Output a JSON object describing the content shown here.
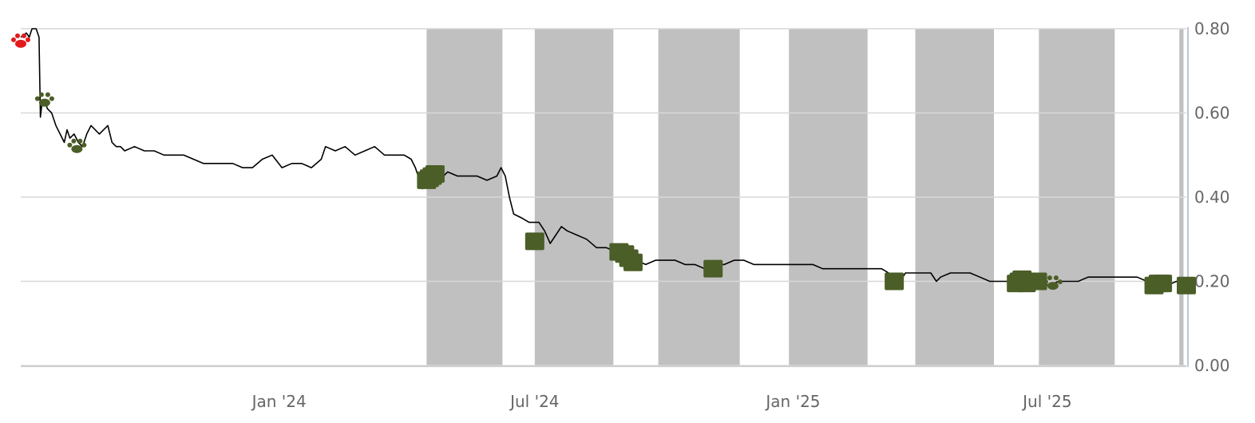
{
  "chart_data": {
    "type": "line",
    "title": "",
    "xlabel": "",
    "ylabel": "",
    "x_range": [
      "2023-07-01",
      "2025-10-08"
    ],
    "ylim": [
      0,
      0.8
    ],
    "y_ticks": [
      "0.00",
      "0.20",
      "0.40",
      "0.60",
      "0.80"
    ],
    "x_ticks": [
      {
        "date": "2024-01-01",
        "label": "Jan '24"
      },
      {
        "date": "2024-07-01",
        "label": "Jul '24"
      },
      {
        "date": "2025-01-01",
        "label": "Jan '25"
      },
      {
        "date": "2025-07-01",
        "label": "Jul '25"
      }
    ],
    "grid": "horizontal",
    "y_axis_position": "right",
    "colors": {
      "line": "#000000",
      "shade": "#c0c0c0",
      "marker": "#4b5e27",
      "marker_red": "#e31a1c",
      "grid": "#d8d8d8",
      "text": "#666666"
    },
    "shaded_periods": [
      [
        "2024-04-15",
        "2024-06-08"
      ],
      [
        "2024-07-01",
        "2024-08-26"
      ],
      [
        "2024-09-27",
        "2024-11-24"
      ],
      [
        "2024-12-29",
        "2025-02-23"
      ],
      [
        "2025-03-29",
        "2025-05-24"
      ],
      [
        "2025-06-25",
        "2025-08-18"
      ],
      [
        "2025-10-03",
        "2025-10-06"
      ]
    ],
    "series": [
      {
        "values": [
          [
            "2023-07-01",
            0.78
          ],
          [
            "2023-07-05",
            0.79
          ],
          [
            "2023-07-07",
            0.78
          ],
          [
            "2023-07-09",
            0.8
          ],
          [
            "2023-07-12",
            0.8
          ],
          [
            "2023-07-14",
            0.78
          ],
          [
            "2023-07-15",
            0.59
          ],
          [
            "2023-07-16",
            0.62
          ],
          [
            "2023-07-18",
            0.63
          ],
          [
            "2023-07-20",
            0.61
          ],
          [
            "2023-07-23",
            0.6
          ],
          [
            "2023-07-26",
            0.57
          ],
          [
            "2023-07-29",
            0.55
          ],
          [
            "2023-08-01",
            0.53
          ],
          [
            "2023-08-03",
            0.56
          ],
          [
            "2023-08-05",
            0.54
          ],
          [
            "2023-08-08",
            0.55
          ],
          [
            "2023-08-11",
            0.53
          ],
          [
            "2023-08-14",
            0.52
          ],
          [
            "2023-08-17",
            0.55
          ],
          [
            "2023-08-20",
            0.57
          ],
          [
            "2023-08-23",
            0.56
          ],
          [
            "2023-08-26",
            0.55
          ],
          [
            "2023-08-29",
            0.56
          ],
          [
            "2023-09-01",
            0.57
          ],
          [
            "2023-09-04",
            0.53
          ],
          [
            "2023-09-07",
            0.52
          ],
          [
            "2023-09-10",
            0.52
          ],
          [
            "2023-09-13",
            0.51
          ],
          [
            "2023-09-20",
            0.52
          ],
          [
            "2023-09-27",
            0.51
          ],
          [
            "2023-10-04",
            0.51
          ],
          [
            "2023-10-11",
            0.5
          ],
          [
            "2023-10-18",
            0.5
          ],
          [
            "2023-10-25",
            0.5
          ],
          [
            "2023-11-01",
            0.49
          ],
          [
            "2023-11-08",
            0.48
          ],
          [
            "2023-11-15",
            0.48
          ],
          [
            "2023-11-22",
            0.48
          ],
          [
            "2023-11-29",
            0.48
          ],
          [
            "2023-12-06",
            0.47
          ],
          [
            "2023-12-13",
            0.47
          ],
          [
            "2023-12-20",
            0.49
          ],
          [
            "2023-12-27",
            0.5
          ],
          [
            "2024-01-03",
            0.47
          ],
          [
            "2024-01-10",
            0.48
          ],
          [
            "2024-01-17",
            0.48
          ],
          [
            "2024-01-24",
            0.47
          ],
          [
            "2024-01-31",
            0.49
          ],
          [
            "2024-02-03",
            0.52
          ],
          [
            "2024-02-10",
            0.51
          ],
          [
            "2024-02-17",
            0.52
          ],
          [
            "2024-02-24",
            0.5
          ],
          [
            "2024-03-02",
            0.51
          ],
          [
            "2024-03-09",
            0.52
          ],
          [
            "2024-03-16",
            0.5
          ],
          [
            "2024-03-23",
            0.5
          ],
          [
            "2024-03-30",
            0.5
          ],
          [
            "2024-04-04",
            0.49
          ],
          [
            "2024-04-07",
            0.47
          ],
          [
            "2024-04-10",
            0.44
          ],
          [
            "2024-04-12",
            0.42
          ],
          [
            "2024-04-14",
            0.43
          ],
          [
            "2024-04-17",
            0.47
          ],
          [
            "2024-04-21",
            0.46
          ],
          [
            "2024-04-24",
            0.44
          ],
          [
            "2024-04-30",
            0.46
          ],
          [
            "2024-05-07",
            0.45
          ],
          [
            "2024-05-14",
            0.45
          ],
          [
            "2024-05-21",
            0.45
          ],
          [
            "2024-05-28",
            0.44
          ],
          [
            "2024-06-04",
            0.45
          ],
          [
            "2024-06-07",
            0.47
          ],
          [
            "2024-06-10",
            0.45
          ],
          [
            "2024-06-13",
            0.4
          ],
          [
            "2024-06-16",
            0.36
          ],
          [
            "2024-06-22",
            0.35
          ],
          [
            "2024-06-27",
            0.34
          ],
          [
            "2024-07-04",
            0.34
          ],
          [
            "2024-07-08",
            0.32
          ],
          [
            "2024-07-12",
            0.29
          ],
          [
            "2024-07-16",
            0.31
          ],
          [
            "2024-07-20",
            0.33
          ],
          [
            "2024-07-24",
            0.32
          ],
          [
            "2024-07-31",
            0.31
          ],
          [
            "2024-08-07",
            0.3
          ],
          [
            "2024-08-14",
            0.28
          ],
          [
            "2024-08-21",
            0.28
          ],
          [
            "2024-08-28",
            0.27
          ],
          [
            "2024-09-04",
            0.26
          ],
          [
            "2024-09-11",
            0.25
          ],
          [
            "2024-09-18",
            0.24
          ],
          [
            "2024-09-25",
            0.25
          ],
          [
            "2024-10-02",
            0.25
          ],
          [
            "2024-10-09",
            0.25
          ],
          [
            "2024-10-16",
            0.24
          ],
          [
            "2024-10-23",
            0.24
          ],
          [
            "2024-10-30",
            0.23
          ],
          [
            "2024-11-06",
            0.24
          ],
          [
            "2024-11-13",
            0.24
          ],
          [
            "2024-11-20",
            0.25
          ],
          [
            "2024-11-27",
            0.25
          ],
          [
            "2024-12-04",
            0.24
          ],
          [
            "2024-12-11",
            0.24
          ],
          [
            "2024-12-18",
            0.24
          ],
          [
            "2024-12-25",
            0.24
          ],
          [
            "2025-01-01",
            0.24
          ],
          [
            "2025-01-08",
            0.24
          ],
          [
            "2025-01-15",
            0.24
          ],
          [
            "2025-01-22",
            0.23
          ],
          [
            "2025-01-29",
            0.23
          ],
          [
            "2025-02-05",
            0.23
          ],
          [
            "2025-02-12",
            0.23
          ],
          [
            "2025-02-19",
            0.23
          ],
          [
            "2025-02-26",
            0.23
          ],
          [
            "2025-03-05",
            0.23
          ],
          [
            "2025-03-10",
            0.22
          ],
          [
            "2025-03-14",
            0.21
          ],
          [
            "2025-03-18",
            0.2
          ],
          [
            "2025-03-22",
            0.22
          ],
          [
            "2025-04-02",
            0.22
          ],
          [
            "2025-04-09",
            0.22
          ],
          [
            "2025-04-13",
            0.2
          ],
          [
            "2025-04-16",
            0.21
          ],
          [
            "2025-04-23",
            0.22
          ],
          [
            "2025-04-30",
            0.22
          ],
          [
            "2025-05-07",
            0.22
          ],
          [
            "2025-05-14",
            0.21
          ],
          [
            "2025-05-21",
            0.2
          ],
          [
            "2025-05-28",
            0.2
          ],
          [
            "2025-06-04",
            0.2
          ],
          [
            "2025-06-11",
            0.2
          ],
          [
            "2025-06-18",
            0.2
          ],
          [
            "2025-06-25",
            0.2
          ],
          [
            "2025-07-02",
            0.19
          ],
          [
            "2025-07-09",
            0.2
          ],
          [
            "2025-07-16",
            0.2
          ],
          [
            "2025-07-23",
            0.2
          ],
          [
            "2025-07-30",
            0.21
          ],
          [
            "2025-08-06",
            0.21
          ],
          [
            "2025-08-13",
            0.21
          ],
          [
            "2025-08-20",
            0.21
          ],
          [
            "2025-08-27",
            0.21
          ],
          [
            "2025-09-03",
            0.21
          ],
          [
            "2025-09-10",
            0.2
          ],
          [
            "2025-09-17",
            0.19
          ],
          [
            "2025-09-24",
            0.19
          ],
          [
            "2025-10-01",
            0.2
          ],
          [
            "2025-10-08",
            0.19
          ]
        ]
      }
    ],
    "markers": [
      {
        "date": "2023-07-01",
        "value": 0.77,
        "shape": "paw",
        "color": "red"
      },
      {
        "date": "2023-07-18",
        "value": 0.63,
        "shape": "paw",
        "color": "green"
      },
      {
        "date": "2023-08-10",
        "value": 0.52,
        "shape": "paw",
        "color": "green"
      },
      {
        "date": "2024-04-15",
        "value": 0.44,
        "shape": "square",
        "color": "green"
      },
      {
        "date": "2024-04-17",
        "value": 0.445,
        "shape": "square",
        "color": "green"
      },
      {
        "date": "2024-04-19",
        "value": 0.45,
        "shape": "square",
        "color": "green"
      },
      {
        "date": "2024-04-21",
        "value": 0.455,
        "shape": "square",
        "color": "green"
      },
      {
        "date": "2024-07-01",
        "value": 0.295,
        "shape": "square",
        "color": "green"
      },
      {
        "date": "2024-08-30",
        "value": 0.27,
        "shape": "square",
        "color": "green"
      },
      {
        "date": "2024-09-03",
        "value": 0.265,
        "shape": "square",
        "color": "green"
      },
      {
        "date": "2024-09-06",
        "value": 0.255,
        "shape": "square",
        "color": "green"
      },
      {
        "date": "2024-09-09",
        "value": 0.245,
        "shape": "square",
        "color": "green"
      },
      {
        "date": "2024-11-05",
        "value": 0.23,
        "shape": "square",
        "color": "green"
      },
      {
        "date": "2025-03-14",
        "value": 0.2,
        "shape": "square",
        "color": "green"
      },
      {
        "date": "2025-06-09",
        "value": 0.195,
        "shape": "square",
        "color": "green"
      },
      {
        "date": "2025-06-11",
        "value": 0.2,
        "shape": "square",
        "color": "green"
      },
      {
        "date": "2025-06-13",
        "value": 0.205,
        "shape": "square",
        "color": "green"
      },
      {
        "date": "2025-06-16",
        "value": 0.195,
        "shape": "square",
        "color": "green"
      },
      {
        "date": "2025-06-20",
        "value": 0.2,
        "shape": "square",
        "color": "green"
      },
      {
        "date": "2025-06-24",
        "value": 0.2,
        "shape": "square",
        "color": "green"
      },
      {
        "date": "2025-07-05",
        "value": 0.195,
        "shape": "paw",
        "color": "green"
      },
      {
        "date": "2025-09-15",
        "value": 0.19,
        "shape": "square",
        "color": "green"
      },
      {
        "date": "2025-09-18",
        "value": 0.195,
        "shape": "square",
        "color": "green"
      },
      {
        "date": "2025-09-21",
        "value": 0.195,
        "shape": "square",
        "color": "green"
      },
      {
        "date": "2025-10-08",
        "value": 0.19,
        "shape": "square",
        "color": "green"
      }
    ]
  }
}
